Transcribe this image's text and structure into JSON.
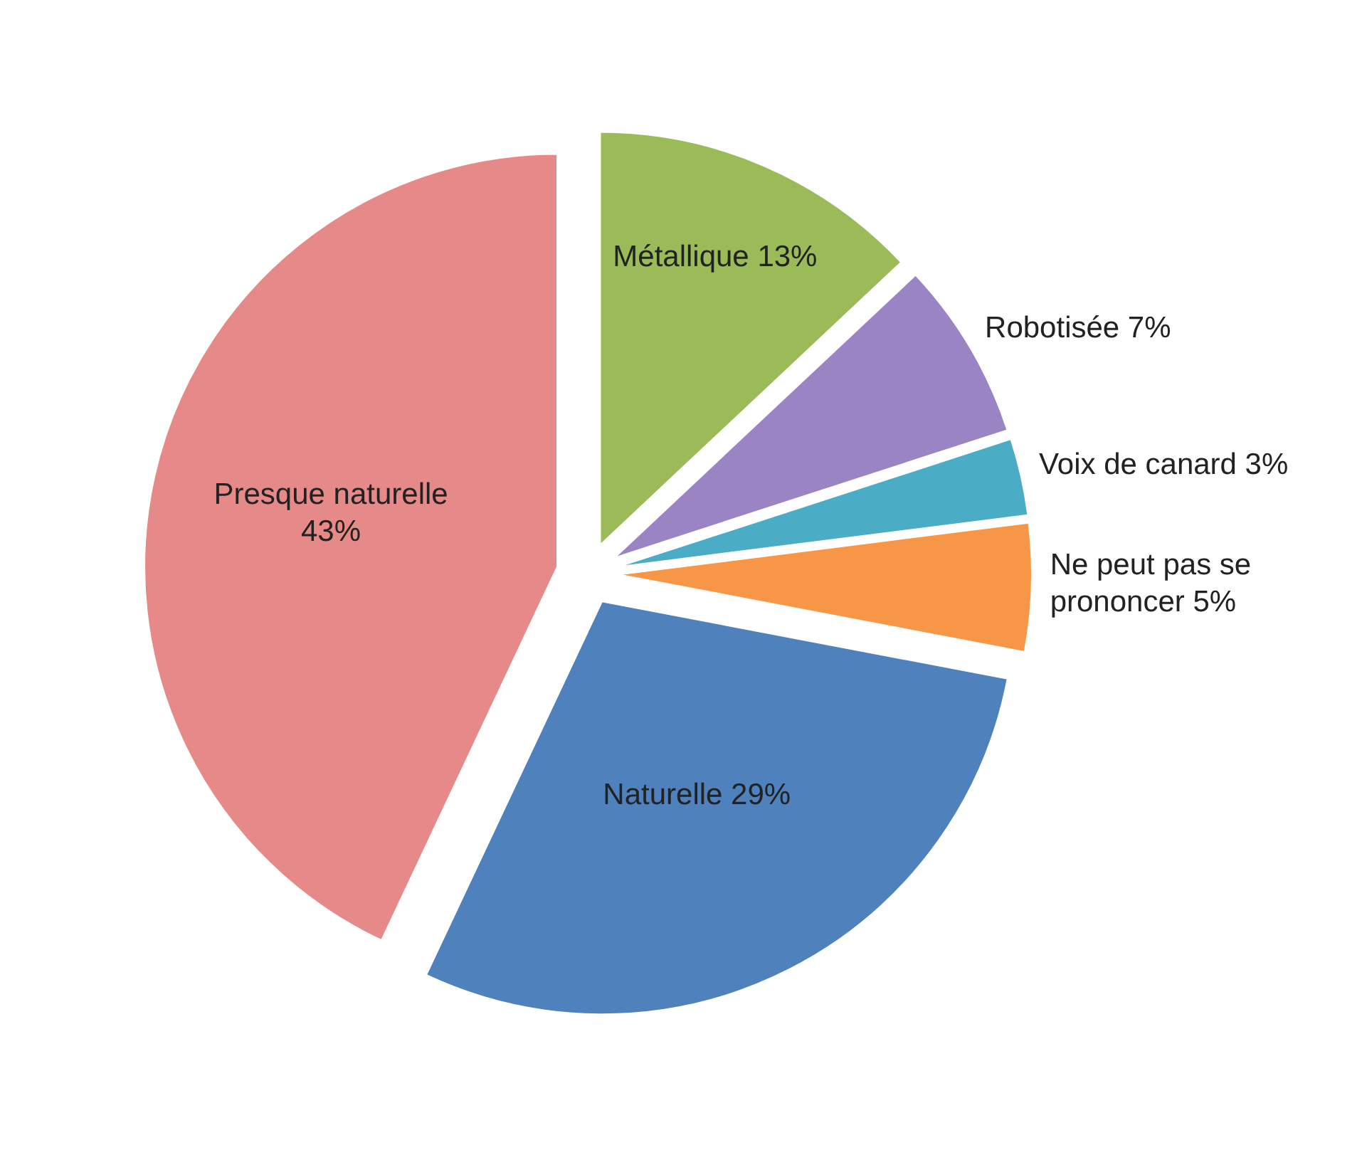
{
  "chart_data": {
    "type": "pie",
    "categories": [
      "Métallique",
      "Robotisée",
      "Voix de canard",
      "Ne peut pas se prononcer",
      "Naturelle",
      "Presque naturelle"
    ],
    "values": [
      13,
      7,
      3,
      5,
      29,
      43
    ],
    "value_labels": [
      "13%",
      "7%",
      "3%",
      "5%",
      "29%",
      "43%"
    ],
    "colors": [
      "#9bbb59",
      "#9a84c4",
      "#4bacc6",
      "#f79646",
      "#4f81bd",
      "#e58a88"
    ]
  }
}
